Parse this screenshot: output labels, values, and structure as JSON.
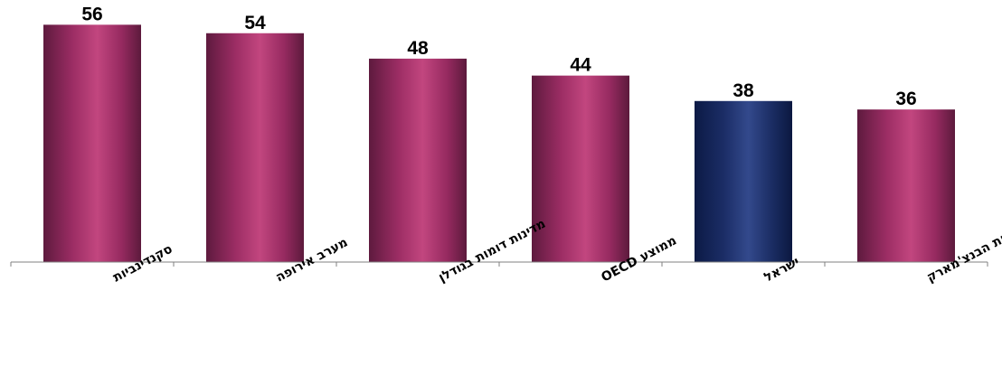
{
  "chart_data": {
    "type": "bar",
    "categories": [
      "סקנדינביות",
      "מערב אירופה",
      "מדינות דומות בגודלן",
      "ממוצע OECD",
      "ישראל",
      "מדינות הבנצ'מארק"
    ],
    "values": [
      56,
      54,
      48,
      44,
      38,
      36
    ],
    "data_labels": [
      "56",
      "54",
      "48",
      "44",
      "38",
      "36"
    ],
    "ylim": [
      0,
      58
    ],
    "grid": false,
    "legend": "none",
    "colors": {
      "default_bar": "#9b2d63",
      "highlight_bar": "#1b2d63",
      "axis": "#808080"
    },
    "highlight_index": 4
  }
}
